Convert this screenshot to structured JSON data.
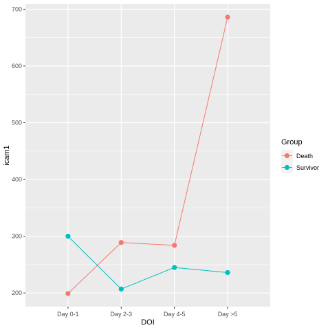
{
  "chart_data": {
    "type": "line",
    "categories": [
      "Day 0-1",
      "Day 2-3",
      "Day 4-5",
      "Day >5"
    ],
    "series": [
      {
        "name": "Death",
        "color": "#F8766D",
        "values": [
          199,
          289,
          284,
          686
        ]
      },
      {
        "name": "Survivor",
        "color": "#00BFC4",
        "values": [
          300,
          207,
          245,
          236
        ]
      }
    ],
    "xlabel": "DOI",
    "ylabel": "icam1",
    "yticks": [
      200,
      300,
      400,
      500,
      600,
      700
    ],
    "ylim": [
      176,
      709
    ],
    "legend": {
      "title": "Group",
      "position": "right"
    },
    "grid": true,
    "panel_color": "#EBEBEB"
  }
}
